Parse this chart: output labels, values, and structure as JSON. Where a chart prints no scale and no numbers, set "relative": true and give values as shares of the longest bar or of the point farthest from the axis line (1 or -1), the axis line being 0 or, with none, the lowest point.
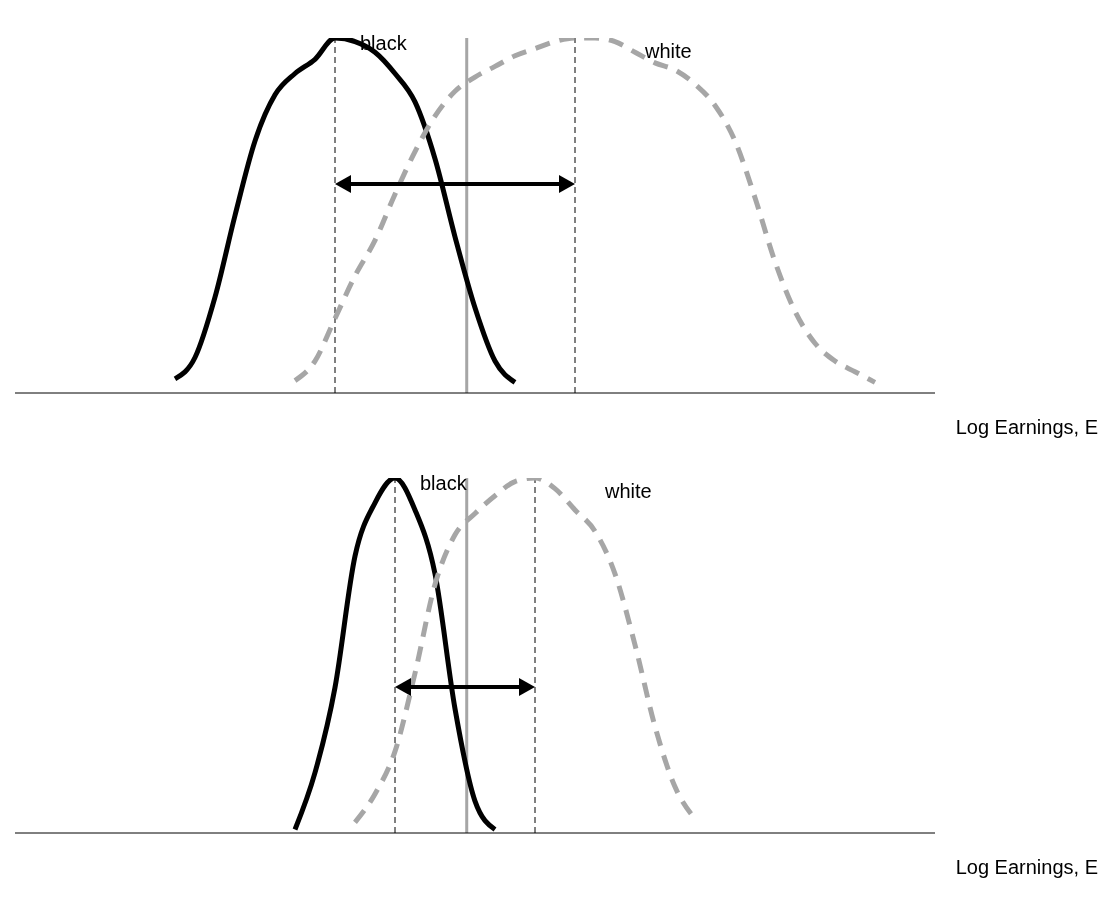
{
  "chart_data": [
    {
      "type": "line",
      "relative": true,
      "xlabel": "Log Earnings, E",
      "legend": false,
      "grid": false,
      "categories": [
        null,
        null,
        null,
        null,
        null,
        null,
        null,
        null,
        null,
        null,
        null,
        null,
        null,
        null,
        null,
        null,
        null,
        null,
        null,
        null,
        null,
        null,
        null,
        null,
        null,
        null,
        null,
        null,
        null,
        null,
        null,
        null,
        null,
        null,
        null,
        null,
        null,
        null,
        null,
        null,
        null,
        null,
        null,
        null,
        null,
        null,
        null
      ],
      "series": [
        {
          "name": "black",
          "color": "#000000",
          "line_style": "solid",
          "values": [
            null,
            null,
            null,
            null,
            null,
            null,
            null,
            null,
            0.04,
            0.1,
            0.27,
            0.5,
            0.71,
            0.84,
            0.9,
            0.94,
            1,
            0.99,
            0.96,
            0.9,
            0.82,
            0.66,
            0.44,
            0.24,
            0.09,
            0.03,
            null,
            null,
            null,
            null,
            null,
            null,
            null,
            null,
            null,
            null,
            null,
            null,
            null,
            null,
            null,
            null,
            null,
            null,
            null,
            null,
            null
          ]
        },
        {
          "name": "white",
          "color": "#a6a6a6",
          "line_style": "dashed",
          "values": [
            null,
            null,
            null,
            null,
            null,
            null,
            null,
            null,
            null,
            null,
            null,
            null,
            null,
            null,
            0.035,
            0.09,
            0.21,
            0.33,
            0.43,
            0.56,
            0.68,
            0.78,
            0.85,
            0.89,
            0.92,
            0.95,
            0.97,
            0.99,
            1,
            1,
            0.99,
            0.96,
            0.93,
            0.91,
            0.87,
            0.81,
            0.71,
            0.55,
            0.37,
            0.23,
            0.14,
            0.09,
            0.06,
            0.03,
            null,
            null,
            null
          ]
        }
      ]
    },
    {
      "type": "line",
      "relative": true,
      "xlabel": "Log Earnings, E",
      "legend": false,
      "grid": false,
      "categories": [
        null,
        null,
        null,
        null,
        null,
        null,
        null,
        null,
        null,
        null,
        null,
        null,
        null,
        null,
        null,
        null,
        null,
        null,
        null,
        null,
        null,
        null,
        null,
        null,
        null,
        null,
        null,
        null,
        null,
        null,
        null,
        null,
        null,
        null,
        null,
        null,
        null,
        null,
        null,
        null,
        null,
        null,
        null,
        null,
        null,
        null,
        null
      ],
      "series": [
        {
          "name": "black",
          "color": "#000000",
          "line_style": "solid",
          "values": [
            null,
            null,
            null,
            null,
            null,
            null,
            null,
            null,
            null,
            null,
            null,
            null,
            null,
            null,
            0.01,
            0.17,
            0.41,
            0.78,
            0.93,
            1,
            0.91,
            0.73,
            0.35,
            0.09,
            0.01,
            null,
            null,
            null,
            null,
            null,
            null,
            null,
            null,
            null,
            null,
            null,
            null,
            null,
            null,
            null,
            null,
            null,
            null,
            null,
            null,
            null,
            null
          ]
        },
        {
          "name": "white",
          "color": "#a6a6a6",
          "line_style": "dashed",
          "values": [
            null,
            null,
            null,
            null,
            null,
            null,
            null,
            null,
            null,
            null,
            null,
            null,
            null,
            null,
            null,
            null,
            null,
            0.03,
            0.11,
            0.23,
            0.45,
            0.7,
            0.84,
            0.9,
            0.95,
            0.99,
            1,
            0.97,
            0.91,
            0.85,
            0.73,
            0.53,
            0.3,
            0.13,
            0.04,
            null,
            null,
            null,
            null,
            null,
            null,
            null,
            null,
            null,
            null,
            null,
            null
          ]
        }
      ]
    }
  ]
}
